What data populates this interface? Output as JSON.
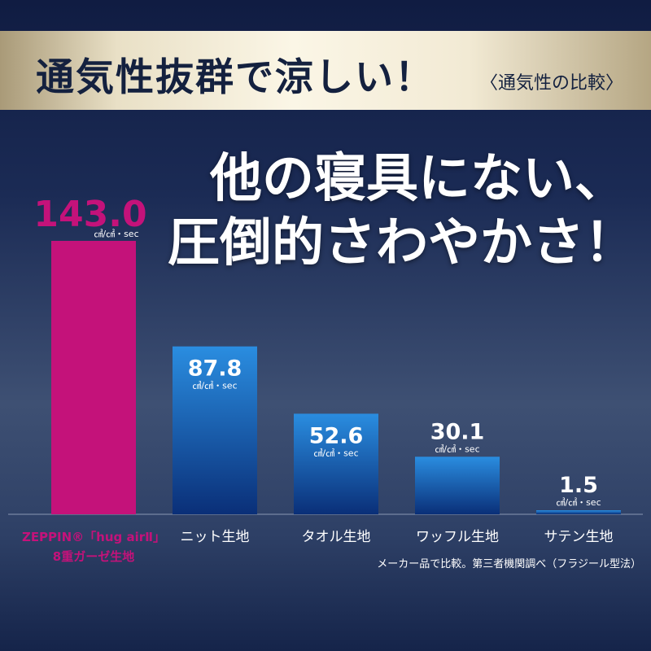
{
  "colors": {
    "highlight": "#c4127a",
    "bar_top": "#2a8de0",
    "bar_bottom": "#0a2f78",
    "banner_text": "#14213f",
    "text": "#ffffff"
  },
  "banner": {
    "title": "通気性抜群で涼しい！",
    "subtitle": "〈通気性の比較〉"
  },
  "headline": {
    "line1": "他の寝具にない、",
    "line2": "圧倒的さわやかさ！"
  },
  "footnote": "メーカー品で比較。第三者機関調べ（フラジール型法）",
  "chart_data": {
    "type": "bar",
    "title": "通気性の比較",
    "unit": "㎤/㎠・sec",
    "categories": [
      "ZEPPIN®「hug airⅡ」8重ガーゼ生地",
      "ニット生地",
      "タオル生地",
      "ワッフル生地",
      "サテン生地"
    ],
    "category_lines": [
      [
        "ZEPPIN®「hug airⅡ」",
        "8重ガーゼ生地"
      ],
      [
        "ニット生地"
      ],
      [
        "タオル生地"
      ],
      [
        "ワッフル生地"
      ],
      [
        "サテン生地"
      ]
    ],
    "values": [
      143.0,
      87.8,
      52.6,
      30.1,
      1.5
    ],
    "value_labels": [
      "143.0",
      "87.8",
      "52.6",
      "30.1",
      "1.5"
    ],
    "highlight_index": 0,
    "ylim": [
      0,
      143.0
    ],
    "grid": false,
    "legend": "none"
  }
}
